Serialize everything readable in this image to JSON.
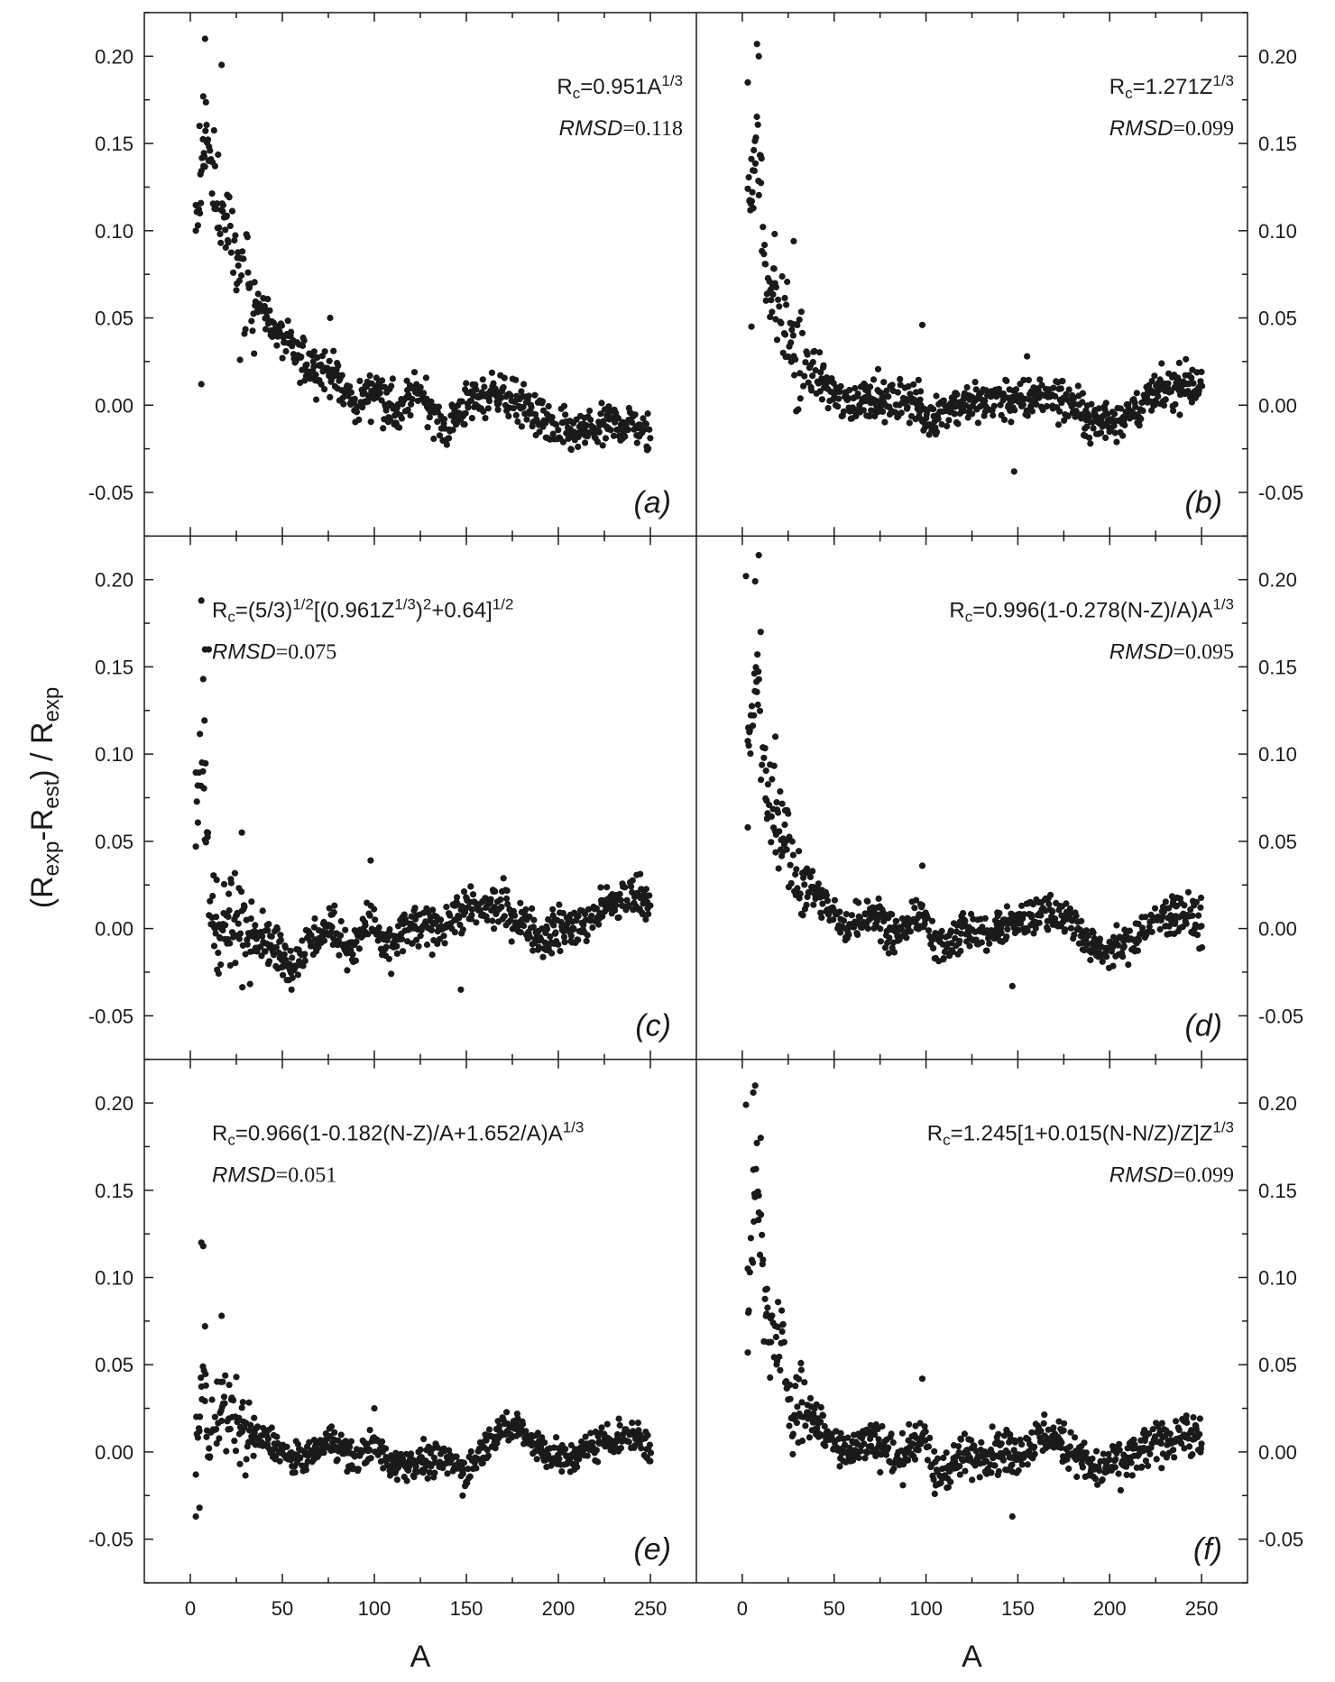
{
  "chart_data": {
    "type": "scatter",
    "ylabel": "(R_exp-R_est) / R_exp",
    "xlabel": "A",
    "xlim": [
      -25,
      275
    ],
    "ylim": [
      -0.075,
      0.225
    ],
    "x_ticks": [
      0,
      50,
      100,
      150,
      200,
      250
    ],
    "y_ticks": [
      -0.05,
      0.0,
      0.05,
      0.1,
      0.15,
      0.2
    ],
    "x_tick_labels": [
      "0",
      "50",
      "100",
      "150",
      "200",
      "250"
    ],
    "y_tick_labels": [
      "-0.05",
      "0.00",
      "0.05",
      "0.10",
      "0.15",
      "0.20"
    ],
    "grid": false,
    "panels": [
      {
        "id": "a",
        "label": "(a)",
        "formula": "R_c=0.951A^(1/3)",
        "rmsd_label": "RMSD",
        "rmsd_value": "=0.118",
        "trend": [
          [
            4,
            0.1
          ],
          [
            8,
            0.16
          ],
          [
            12,
            0.13
          ],
          [
            20,
            0.1
          ],
          [
            30,
            0.07
          ],
          [
            45,
            0.045
          ],
          [
            60,
            0.025
          ],
          [
            75,
            0.02
          ],
          [
            90,
            0.0
          ],
          [
            100,
            0.01
          ],
          [
            112,
            -0.005
          ],
          [
            125,
            0.01
          ],
          [
            138,
            -0.015
          ],
          [
            150,
            0.0
          ],
          [
            165,
            0.008
          ],
          [
            180,
            0.0
          ],
          [
            195,
            -0.012
          ],
          [
            210,
            -0.018
          ],
          [
            225,
            -0.012
          ],
          [
            240,
            -0.01
          ],
          [
            250,
            -0.018
          ]
        ],
        "extremes": [
          [
            3,
            0.1
          ],
          [
            5,
            0.16
          ],
          [
            7,
            0.177
          ],
          [
            8,
            0.21
          ],
          [
            6,
            0.012
          ],
          [
            10,
            0.14
          ],
          [
            17,
            0.195
          ],
          [
            27,
            0.026
          ],
          [
            76,
            0.05
          ]
        ],
        "spread": 0.012
      },
      {
        "id": "b",
        "label": "(b)",
        "formula": "R_c=1.271Z^(1/3)",
        "rmsd_label": "RMSD",
        "rmsd_value": "=0.099",
        "trend": [
          [
            4,
            0.12
          ],
          [
            8,
            0.16
          ],
          [
            12,
            0.08
          ],
          [
            20,
            0.06
          ],
          [
            28,
            0.03
          ],
          [
            40,
            0.018
          ],
          [
            55,
            0.0
          ],
          [
            70,
            0.005
          ],
          [
            80,
            0.0
          ],
          [
            92,
            0.005
          ],
          [
            100,
            -0.01
          ],
          [
            110,
            0.0
          ],
          [
            125,
            0.0
          ],
          [
            140,
            0.005
          ],
          [
            150,
            0.0
          ],
          [
            165,
            0.008
          ],
          [
            180,
            0.0
          ],
          [
            190,
            -0.01
          ],
          [
            200,
            -0.008
          ],
          [
            210,
            -0.005
          ],
          [
            225,
            0.005
          ],
          [
            240,
            0.012
          ],
          [
            250,
            0.01
          ]
        ],
        "extremes": [
          [
            3,
            0.185
          ],
          [
            5,
            0.045
          ],
          [
            8,
            0.207
          ],
          [
            9,
            0.2
          ],
          [
            10,
            0.143
          ],
          [
            28,
            0.094
          ],
          [
            98,
            0.046
          ],
          [
            148,
            -0.038
          ],
          [
            155,
            0.028
          ]
        ],
        "spread": 0.012
      },
      {
        "id": "c",
        "label": "(c)",
        "formula": "R_c=(5/3)^(1/2)[(0.961Z^(1/3))^2+0.64]^(1/2)",
        "rmsd_label": "RMSD",
        "rmsd_value": "=0.075",
        "trend": [
          [
            4,
            0.07
          ],
          [
            7,
            0.1
          ],
          [
            10,
            0.02
          ],
          [
            15,
            0.0
          ],
          [
            25,
            0.0
          ],
          [
            35,
            0.0
          ],
          [
            45,
            -0.01
          ],
          [
            55,
            -0.02
          ],
          [
            65,
            -0.008
          ],
          [
            78,
            0.002
          ],
          [
            88,
            -0.015
          ],
          [
            98,
            0.01
          ],
          [
            105,
            -0.015
          ],
          [
            118,
            0.0
          ],
          [
            130,
            0.0
          ],
          [
            145,
            0.008
          ],
          [
            155,
            0.012
          ],
          [
            170,
            0.012
          ],
          [
            180,
            0.005
          ],
          [
            190,
            -0.005
          ],
          [
            200,
            0.0
          ],
          [
            210,
            0.0
          ],
          [
            225,
            0.012
          ],
          [
            240,
            0.02
          ],
          [
            250,
            0.015
          ]
        ],
        "extremes": [
          [
            3,
            0.047
          ],
          [
            4,
            0.082
          ],
          [
            6,
            0.188
          ],
          [
            7,
            0.143
          ],
          [
            8,
            0.16
          ],
          [
            10,
            0.16
          ],
          [
            13,
            -0.01
          ],
          [
            28,
            0.055
          ],
          [
            98,
            0.039
          ],
          [
            147,
            -0.035
          ],
          [
            55,
            -0.035
          ]
        ],
        "spread": 0.012
      },
      {
        "id": "d",
        "label": "(d)",
        "formula": "R_c=0.996(1-0.278(N-Z)/A)A^(1/3)",
        "rmsd_label": "RMSD",
        "rmsd_value": "=0.095",
        "trend": [
          [
            4,
            0.1
          ],
          [
            8,
            0.15
          ],
          [
            12,
            0.08
          ],
          [
            20,
            0.06
          ],
          [
            30,
            0.03
          ],
          [
            45,
            0.015
          ],
          [
            55,
            0.0
          ],
          [
            70,
            0.01
          ],
          [
            85,
            -0.005
          ],
          [
            98,
            0.01
          ],
          [
            105,
            -0.012
          ],
          [
            120,
            0.0
          ],
          [
            135,
            -0.003
          ],
          [
            150,
            0.005
          ],
          [
            165,
            0.01
          ],
          [
            180,
            0.005
          ],
          [
            190,
            -0.012
          ],
          [
            200,
            -0.012
          ],
          [
            210,
            -0.008
          ],
          [
            225,
            0.005
          ],
          [
            240,
            0.01
          ],
          [
            250,
            0.002
          ]
        ],
        "extremes": [
          [
            3,
            0.058
          ],
          [
            2,
            0.202
          ],
          [
            7,
            0.199
          ],
          [
            9,
            0.214
          ],
          [
            10,
            0.17
          ],
          [
            18,
            0.11
          ],
          [
            98,
            0.036
          ],
          [
            147,
            -0.033
          ]
        ],
        "spread": 0.011
      },
      {
        "id": "e",
        "label": "(e)",
        "formula": "R_c=0.966(1-0.182(N-Z)/A+1.652/A)A^(1/3)",
        "rmsd_label": "RMSD",
        "rmsd_value": "=0.051",
        "trend": [
          [
            4,
            0.0
          ],
          [
            7,
            0.05
          ],
          [
            10,
            0.0
          ],
          [
            15,
            0.03
          ],
          [
            22,
            0.02
          ],
          [
            30,
            0.01
          ],
          [
            45,
            0.005
          ],
          [
            55,
            -0.005
          ],
          [
            65,
            -0.002
          ],
          [
            78,
            0.008
          ],
          [
            88,
            -0.005
          ],
          [
            100,
            0.005
          ],
          [
            110,
            -0.008
          ],
          [
            125,
            -0.005
          ],
          [
            140,
            -0.005
          ],
          [
            150,
            -0.01
          ],
          [
            165,
            0.01
          ],
          [
            178,
            0.015
          ],
          [
            190,
            0.002
          ],
          [
            205,
            -0.005
          ],
          [
            220,
            0.005
          ],
          [
            240,
            0.01
          ],
          [
            250,
            0.002
          ]
        ],
        "extremes": [
          [
            3,
            -0.037
          ],
          [
            5,
            -0.032
          ],
          [
            6,
            0.12
          ],
          [
            7,
            0.118
          ],
          [
            8,
            0.072
          ],
          [
            17,
            0.078
          ],
          [
            100,
            0.025
          ],
          [
            148,
            -0.025
          ]
        ],
        "spread": 0.009
      },
      {
        "id": "f",
        "label": "(f)",
        "formula": "R_c=1.245[1+0.015(N-N/Z)/Z]Z^(1/3)",
        "rmsd_label": "RMSD",
        "rmsd_value": "=0.099",
        "trend": [
          [
            4,
            0.1
          ],
          [
            8,
            0.16
          ],
          [
            12,
            0.08
          ],
          [
            20,
            0.06
          ],
          [
            28,
            0.03
          ],
          [
            40,
            0.018
          ],
          [
            55,
            0.0
          ],
          [
            72,
            0.008
          ],
          [
            85,
            -0.005
          ],
          [
            98,
            0.01
          ],
          [
            105,
            -0.015
          ],
          [
            120,
            -0.003
          ],
          [
            135,
            0.0
          ],
          [
            150,
            0.0
          ],
          [
            165,
            0.01
          ],
          [
            180,
            0.002
          ],
          [
            190,
            -0.01
          ],
          [
            200,
            -0.008
          ],
          [
            210,
            -0.005
          ],
          [
            225,
            0.005
          ],
          [
            240,
            0.012
          ],
          [
            250,
            0.005
          ]
        ],
        "extremes": [
          [
            3,
            0.057
          ],
          [
            2,
            0.199
          ],
          [
            6,
            0.206
          ],
          [
            7,
            0.21
          ],
          [
            9,
            0.147
          ],
          [
            10,
            0.18
          ],
          [
            98,
            0.042
          ],
          [
            147,
            -0.037
          ]
        ],
        "spread": 0.012
      }
    ]
  }
}
